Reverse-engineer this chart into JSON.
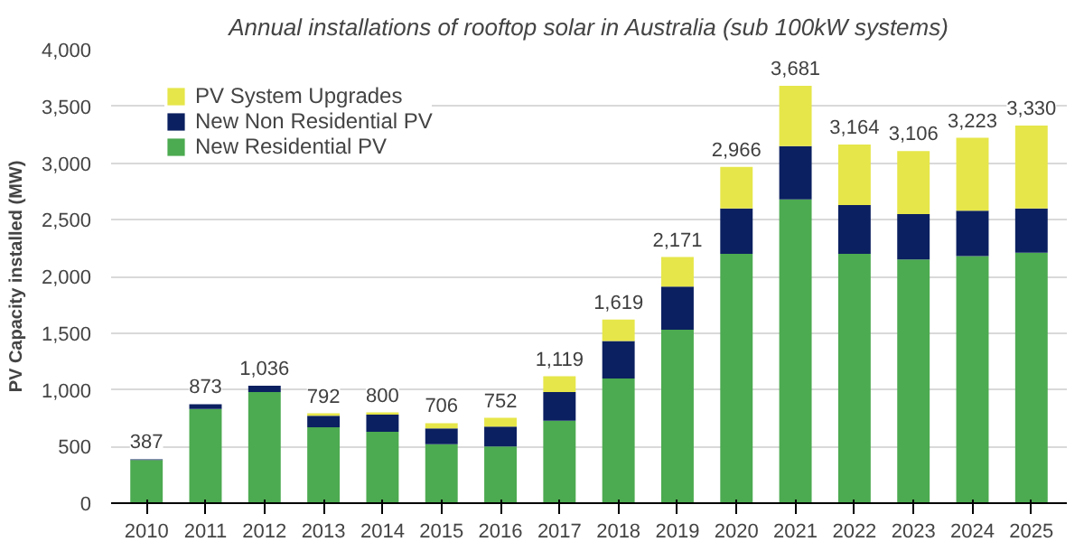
{
  "chart_data": {
    "type": "bar",
    "title": "Annual installations of rooftop solar in Australia (sub 100kW systems)",
    "ylabel": "PV Capacity installed (MW)",
    "categories": [
      "2010",
      "2011",
      "2012",
      "2013",
      "2014",
      "2015",
      "2016",
      "2017",
      "2018",
      "2019",
      "2020",
      "2021",
      "2022",
      "2023",
      "2024",
      "2025"
    ],
    "stacked": true,
    "series": [
      {
        "name": "New Residential PV",
        "color": "#4caa50",
        "values": [
          380,
          830,
          980,
          670,
          630,
          520,
          500,
          727,
          1100,
          1530,
          2200,
          2680,
          2200,
          2150,
          2180,
          2210
        ]
      },
      {
        "name": "New Non Residential PV",
        "color": "#0b2060",
        "values": [
          7,
          43,
          56,
          100,
          150,
          140,
          175,
          253,
          330,
          380,
          400,
          470,
          430,
          400,
          400,
          390
        ]
      },
      {
        "name": "PV System Upgrades",
        "color": "#e6e64a",
        "values": [
          0,
          0,
          0,
          22,
          20,
          46,
          77,
          139,
          189,
          261,
          366,
          531,
          534,
          556,
          643,
          730
        ]
      }
    ],
    "totals": [
      "387",
      "873",
      "1,036",
      "792",
      "800",
      "706",
      "752",
      "1,119",
      "1,619",
      "2,171",
      "2,966",
      "3,681",
      "3,164",
      "3,106",
      "3,223",
      "3,330"
    ],
    "ylim": [
      0,
      4000
    ],
    "yticks": [
      {
        "value": 0,
        "label": "0"
      },
      {
        "value": 500,
        "label": "500"
      },
      {
        "value": 1000,
        "label": "1,000"
      },
      {
        "value": 1500,
        "label": "1,500"
      },
      {
        "value": 2000,
        "label": "2,000"
      },
      {
        "value": 2500,
        "label": "2,500"
      },
      {
        "value": 3000,
        "label": "3,000"
      },
      {
        "value": 3500,
        "label": "3,500"
      },
      {
        "value": 4000,
        "label": "4,000"
      }
    ],
    "grid": "y",
    "legend": "top left"
  }
}
